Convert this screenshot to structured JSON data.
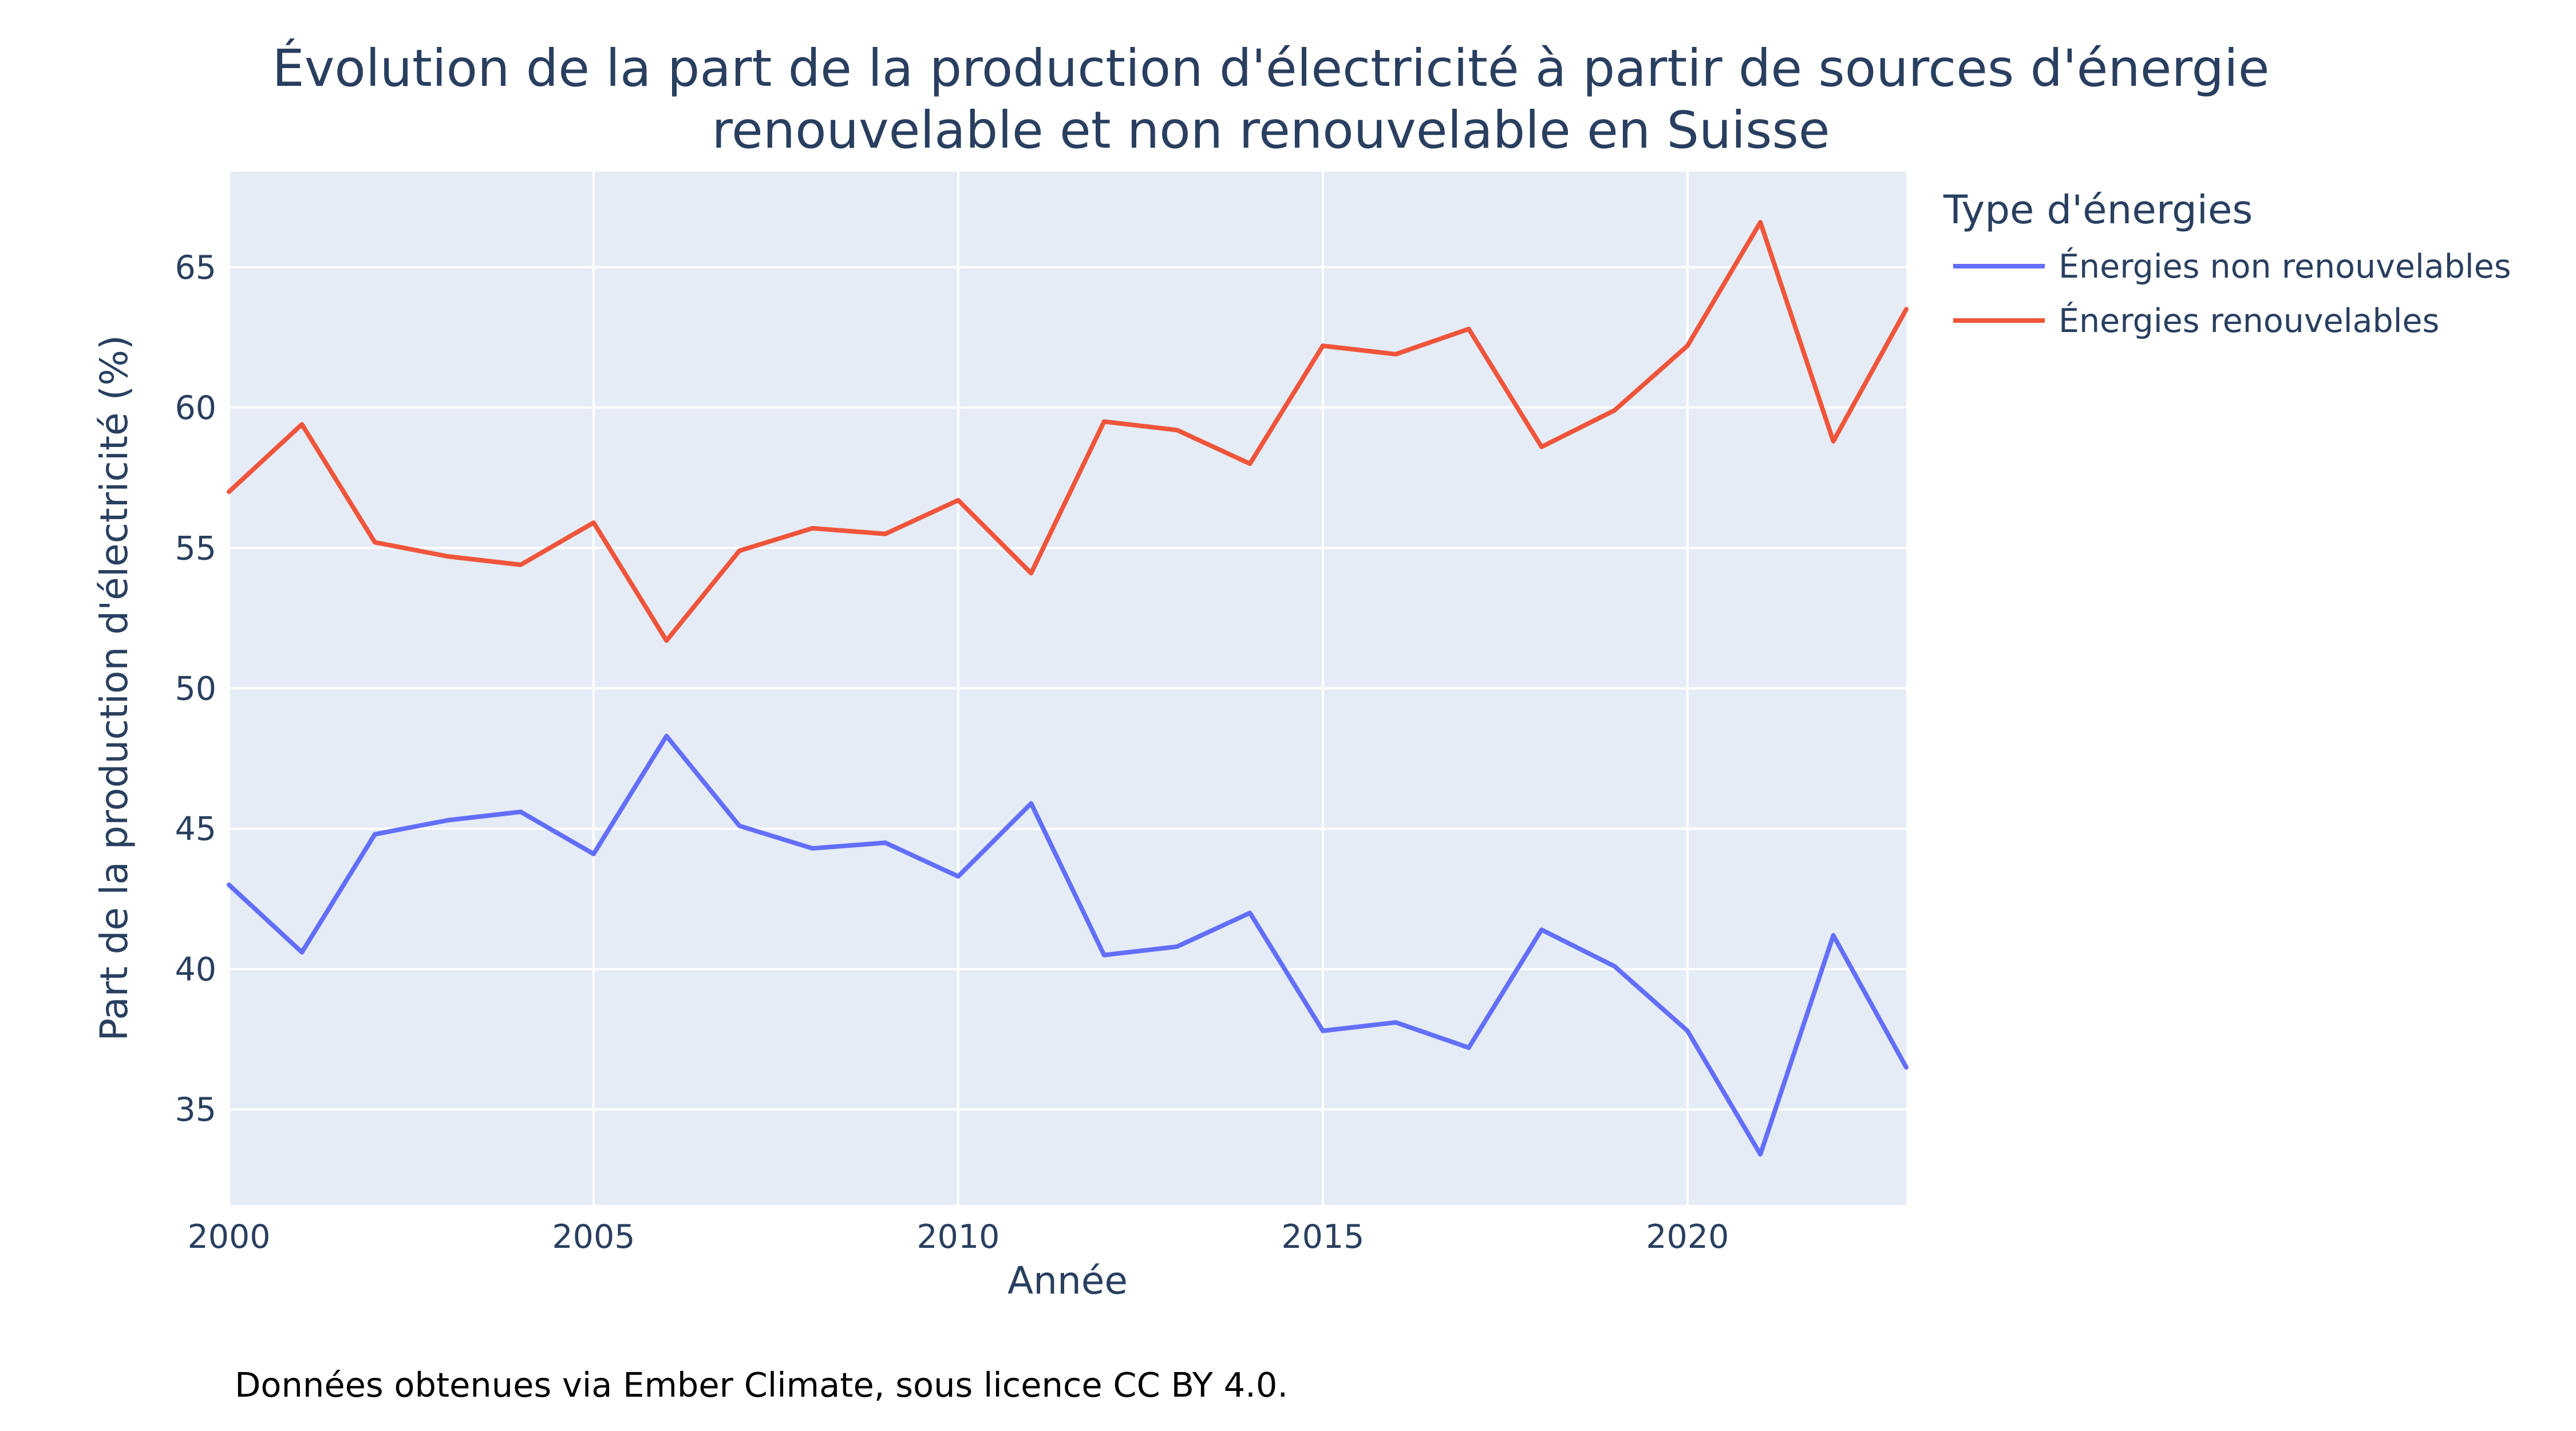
{
  "chart_data": {
    "type": "line",
    "title_line1": "Évolution de la part de la production d'électricité à partir de sources d'énergie",
    "title_line2": "renouvelable et non renouvelable en Suisse",
    "xlabel": "Année",
    "ylabel": "Part de la production d'électricité (%)",
    "x": [
      2000,
      2001,
      2002,
      2003,
      2004,
      2005,
      2006,
      2007,
      2008,
      2009,
      2010,
      2011,
      2012,
      2013,
      2014,
      2015,
      2016,
      2017,
      2018,
      2019,
      2020,
      2021,
      2022,
      2023
    ],
    "xlim": [
      2000,
      2023
    ],
    "ylim": [
      31.6,
      68.4
    ],
    "xticks": [
      2000,
      2005,
      2010,
      2015,
      2020
    ],
    "yticks": [
      35,
      40,
      45,
      50,
      55,
      60,
      65
    ],
    "grid": true,
    "legend": {
      "title": "Type d'énergies",
      "placement": "top-right-outside"
    },
    "series": [
      {
        "name": "Énergies non renouvelables",
        "color": "#636efa",
        "values": [
          43.0,
          40.6,
          44.8,
          45.3,
          45.6,
          44.1,
          48.3,
          45.1,
          44.3,
          44.5,
          43.3,
          45.9,
          40.5,
          40.8,
          42.0,
          37.8,
          38.1,
          37.2,
          41.4,
          40.1,
          37.8,
          33.4,
          41.2,
          36.5
        ]
      },
      {
        "name": "Énergies renouvelables",
        "color": "#ef553b",
        "values": [
          57.0,
          59.4,
          55.2,
          54.7,
          54.4,
          55.9,
          51.7,
          54.9,
          55.7,
          55.5,
          56.7,
          54.1,
          59.5,
          59.2,
          58.0,
          62.2,
          61.9,
          62.8,
          58.6,
          59.9,
          62.2,
          66.6,
          58.8,
          63.5
        ]
      }
    ],
    "annotation": "Données obtenues via Ember Climate, sous licence CC BY 4.0."
  },
  "colors": {
    "plot_background": "#e5ecf6",
    "gridline": "#ffffff",
    "text": "#2a3f5f"
  }
}
